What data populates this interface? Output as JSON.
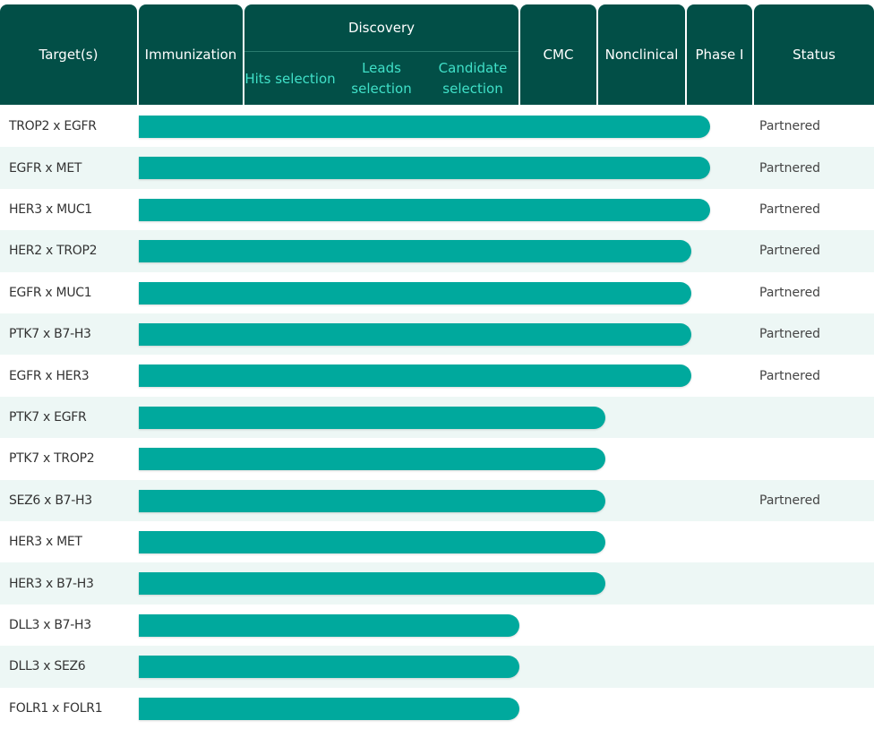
{
  "header": {
    "columns": [
      {
        "label": "Target(s)"
      },
      {
        "label": "Immunization"
      },
      {
        "label": "Discovery",
        "sub": [
          "Hits selection",
          "Leads selection",
          "Candidate selection"
        ]
      },
      {
        "label": "CMC"
      },
      {
        "label": "Nonclinical"
      },
      {
        "label": "Phase I"
      },
      {
        "label": "Status"
      }
    ]
  },
  "rows": [
    {
      "target": "TROP2 x EGFR",
      "reaches": "Phase I",
      "status": "Partnered"
    },
    {
      "target": "EGFR x MET",
      "reaches": "Phase I",
      "status": "Partnered"
    },
    {
      "target": "HER3 x MUC1",
      "reaches": "Phase I",
      "status": "Partnered"
    },
    {
      "target": "HER2 x TROP2",
      "reaches": "Nonclinical",
      "status": "Partnered"
    },
    {
      "target": "EGFR x MUC1",
      "reaches": "Nonclinical",
      "status": "Partnered"
    },
    {
      "target": "PTK7 x B7-H3",
      "reaches": "Nonclinical",
      "status": "Partnered"
    },
    {
      "target": "EGFR x HER3",
      "reaches": "Nonclinical",
      "status": "Partnered"
    },
    {
      "target": "PTK7 x EGFR",
      "reaches": "CMC"
    },
    {
      "target": "PTK7 x TROP2",
      "reaches": "CMC"
    },
    {
      "target": "SEZ6 x B7-H3",
      "reaches": "CMC",
      "status": "Partnered"
    },
    {
      "target": "HER3 x MET",
      "reaches": "CMC"
    },
    {
      "target": "HER3 x B7-H3",
      "reaches": "CMC"
    },
    {
      "target": "DLL3 x B7-H3",
      "reaches": "Candidate selection"
    },
    {
      "target": "DLL3 x SEZ6",
      "reaches": "Candidate selection"
    },
    {
      "target": "FOLR1 x FOLR1",
      "reaches": "Candidate selection"
    }
  ]
}
